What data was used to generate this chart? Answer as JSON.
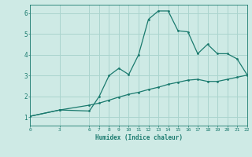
{
  "xlabel": "Humidex (Indice chaleur)",
  "background_color": "#ceeae5",
  "grid_color": "#aad4ce",
  "line_color": "#1a7a6e",
  "xlim": [
    0,
    22
  ],
  "ylim": [
    0.6,
    6.4
  ],
  "xticks": [
    0,
    3,
    6,
    7,
    8,
    9,
    10,
    11,
    12,
    13,
    14,
    15,
    16,
    17,
    18,
    19,
    20,
    21,
    22
  ],
  "yticks": [
    1,
    2,
    3,
    4,
    5,
    6
  ],
  "line1_x": [
    0,
    3,
    3,
    6,
    7,
    8,
    9,
    10,
    11,
    12,
    13,
    14,
    15,
    16,
    17,
    18,
    19,
    20,
    21,
    22
  ],
  "line1_y": [
    1.05,
    1.35,
    1.35,
    1.3,
    2.0,
    3.0,
    3.35,
    3.05,
    4.0,
    5.7,
    6.1,
    6.1,
    5.15,
    5.1,
    4.05,
    4.5,
    4.05,
    4.05,
    3.8,
    3.05
  ],
  "line2_x": [
    0,
    3,
    6,
    7,
    8,
    9,
    10,
    11,
    12,
    13,
    14,
    15,
    16,
    17,
    18,
    19,
    20,
    21,
    22
  ],
  "line2_y": [
    1.05,
    1.35,
    1.58,
    1.68,
    1.82,
    1.97,
    2.1,
    2.2,
    2.33,
    2.44,
    2.58,
    2.68,
    2.78,
    2.82,
    2.72,
    2.72,
    2.82,
    2.92,
    3.02
  ]
}
